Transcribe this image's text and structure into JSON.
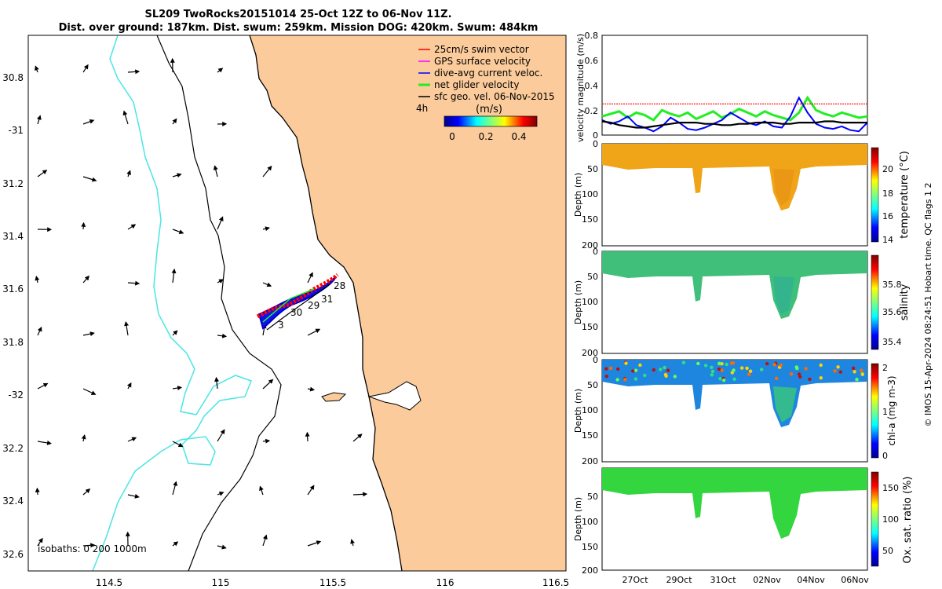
{
  "header": {
    "title_line1": "SL209 TwoRocks20151014 25-Oct 12Z to 06-Nov 11Z.",
    "title_line2": "Dist. over ground: 187km. Dist. swum: 259km. Mission DOG: 420km. Swum: 484km"
  },
  "colors": {
    "land": "#FBCB9B",
    "isobath_shelf": "#4AE5E5",
    "swim_vector": "#FF0000",
    "gps_surface_velocity": "#FF00FF",
    "dive_avg_current": "#0000FF",
    "net_glider_velocity": "#22EE22",
    "sfc_geo_vel": "#000000",
    "temperature_water": "#F0A418",
    "salinity_water": "#3FBF79",
    "chla_water": "#1F86E0",
    "oxygen_water": "#33D63F"
  },
  "map": {
    "legend": [
      {
        "label": "25cm/s swim vector",
        "color_key": "swim_vector"
      },
      {
        "label": "GPS surface velocity",
        "color_key": "gps_surface_velocity"
      },
      {
        "label": "dive-avg current veloc.",
        "color_key": "dive_avg_current"
      },
      {
        "label": "net glider velocity",
        "color_key": "net_glider_velocity"
      },
      {
        "label": "sfc geo. vel. 06-Nov-2015",
        "color_key": "sfc_geo_vel"
      }
    ],
    "timestep_label": "4h",
    "colorbar": {
      "unit": "(m/s)",
      "ticks": [
        "0",
        "0.2",
        "0.4"
      ],
      "range": [
        0,
        0.5
      ]
    },
    "isobath_label": "isobaths: 0   200  1000m",
    "lon_ticks": [
      "114.5",
      "115",
      "115.5",
      "116",
      "116.5"
    ],
    "lat_ticks": [
      "30.8",
      "-31",
      "31.2",
      "31.4",
      "31.6",
      "31.8",
      "-32",
      "32.2",
      "32.4",
      "32.6"
    ],
    "track_day_labels": [
      "28",
      "31",
      "29",
      "30",
      "3"
    ]
  },
  "chart_data": [
    {
      "type": "line",
      "ylabel": "velocity magnitude (m/s)",
      "ylim": [
        0,
        0.8
      ],
      "yticks": [
        "0.8",
        "0.6",
        "0.4",
        "0.2",
        "0"
      ],
      "series": [
        {
          "color_key": "net_glider_velocity",
          "values": [
            0.15,
            0.17,
            0.19,
            0.14,
            0.18,
            0.16,
            0.12,
            0.2,
            0.17,
            0.15,
            0.18,
            0.13,
            0.16,
            0.19,
            0.14,
            0.17,
            0.21,
            0.18,
            0.15,
            0.19,
            0.16,
            0.14,
            0.12,
            0.18,
            0.3,
            0.2,
            0.17,
            0.15,
            0.18,
            0.16,
            0.14,
            0.15
          ]
        },
        {
          "color_key": "dive_avg_current",
          "values": [
            0.12,
            0.09,
            0.11,
            0.15,
            0.08,
            0.06,
            0.03,
            0.07,
            0.14,
            0.1,
            0.05,
            0.04,
            0.06,
            0.09,
            0.12,
            0.18,
            0.14,
            0.1,
            0.08,
            0.11,
            0.07,
            0.06,
            0.15,
            0.3,
            0.18,
            0.09,
            0.06,
            0.05,
            0.07,
            0.04,
            0.03,
            0.1
          ]
        },
        {
          "color_key": "sfc_geo_vel",
          "values": [
            0.11,
            0.1,
            0.08,
            0.07,
            0.06,
            0.06,
            0.07,
            0.08,
            0.09,
            0.1,
            0.1,
            0.1,
            0.09,
            0.09,
            0.08,
            0.08,
            0.09,
            0.09,
            0.1,
            0.1,
            0.1,
            0.09,
            0.09,
            0.1,
            0.1,
            0.1,
            0.11,
            0.11,
            0.1,
            0.1,
            0.1,
            0.1
          ]
        },
        {
          "color_key": "swim_vector",
          "values": [
            0.25,
            0.25,
            0.25,
            0.25,
            0.25,
            0.25,
            0.25,
            0.25,
            0.25,
            0.25,
            0.25,
            0.25,
            0.25,
            0.25,
            0.25,
            0.25,
            0.25,
            0.25,
            0.25,
            0.25,
            0.25,
            0.25,
            0.25,
            0.25,
            0.25,
            0.25,
            0.25,
            0.25,
            0.25,
            0.25,
            0.25,
            0.25
          ]
        }
      ]
    },
    {
      "type": "heatmap",
      "ylabel": "Depth (m)",
      "colorbar_label": "temperature (°C)",
      "colorbar_ticks": [
        "20",
        "18",
        "16",
        "14"
      ],
      "clim": [
        14,
        21
      ],
      "ylim": [
        0,
        200
      ],
      "yticks": [
        "0",
        "50",
        "100",
        "150",
        "200"
      ],
      "water_color_key": "temperature_water"
    },
    {
      "type": "heatmap",
      "ylabel": "Depth (m)",
      "colorbar_label": "salinity",
      "colorbar_ticks": [
        "35.8",
        "35.6",
        "35.4"
      ],
      "clim": [
        35.35,
        35.95
      ],
      "ylim": [
        0,
        200
      ],
      "yticks": [
        "0",
        "50",
        "100",
        "150",
        "200"
      ],
      "water_color_key": "salinity_water"
    },
    {
      "type": "heatmap",
      "ylabel": "Depth (m)",
      "colorbar_label": "chl-a (mg m-3)",
      "colorbar_ticks": [
        "2",
        "1",
        "0"
      ],
      "clim": [
        0,
        2
      ],
      "ylim": [
        0,
        200
      ],
      "yticks": [
        "0",
        "50",
        "100",
        "150",
        "200"
      ],
      "water_color_key": "chla_water"
    },
    {
      "type": "heatmap",
      "ylabel": "Depth (m)",
      "colorbar_label": "Ox. sat. ratio (%)",
      "colorbar_ticks": [
        "150",
        "100",
        "50"
      ],
      "clim": [
        25,
        175
      ],
      "ylim": [
        0,
        200
      ],
      "yticks": [
        "50",
        "100",
        "150",
        "200"
      ],
      "water_color_key": "oxygen_water",
      "xticks": [
        "27Oct",
        "29Oct",
        "31Oct",
        "02Nov",
        "04Nov",
        "06Nov"
      ]
    }
  ],
  "footer": {
    "side_note": "© IMOS 15-Apr-2024 08:24:51 Hobart time. QC flags 1  2"
  }
}
